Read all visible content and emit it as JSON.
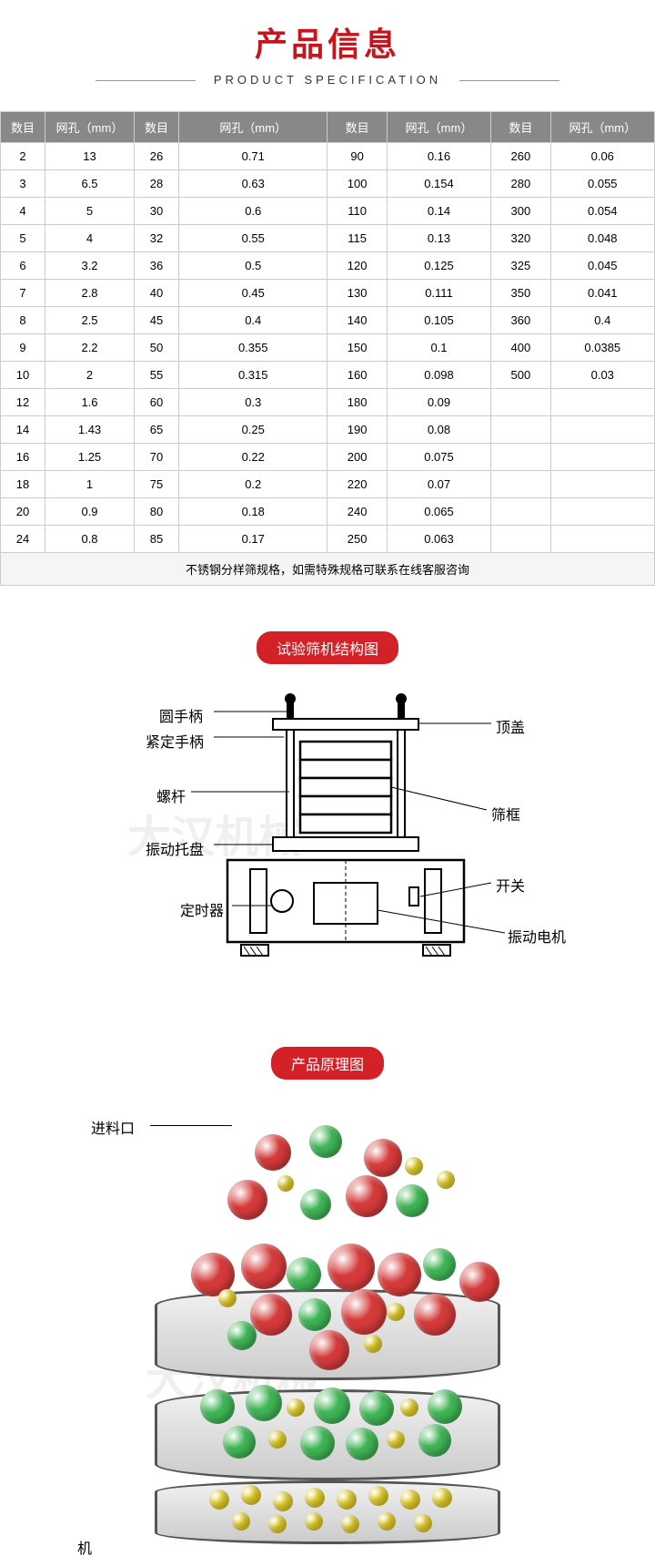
{
  "header": {
    "title_cn": "产品信息",
    "title_en": "PRODUCT SPECIFICATION"
  },
  "table": {
    "headers": [
      "数目",
      "网孔（mm）",
      "数目",
      "网孔（mm）",
      "数目",
      "网孔（mm）",
      "数目",
      "网孔（mm）"
    ],
    "rows": [
      [
        "2",
        "13",
        "26",
        "0.71",
        "90",
        "0.16",
        "260",
        "0.06"
      ],
      [
        "3",
        "6.5",
        "28",
        "0.63",
        "100",
        "0.154",
        "280",
        "0.055"
      ],
      [
        "4",
        "5",
        "30",
        "0.6",
        "110",
        "0.14",
        "300",
        "0.054"
      ],
      [
        "5",
        "4",
        "32",
        "0.55",
        "115",
        "0.13",
        "320",
        "0.048"
      ],
      [
        "6",
        "3.2",
        "36",
        "0.5",
        "120",
        "0.125",
        "325",
        "0.045"
      ],
      [
        "7",
        "2.8",
        "40",
        "0.45",
        "130",
        "0.111",
        "350",
        "0.041"
      ],
      [
        "8",
        "2.5",
        "45",
        "0.4",
        "140",
        "0.105",
        "360",
        "0.4"
      ],
      [
        "9",
        "2.2",
        "50",
        "0.355",
        "150",
        "0.1",
        "400",
        "0.0385"
      ],
      [
        "10",
        "2",
        "55",
        "0.315",
        "160",
        "0.098",
        "500",
        "0.03"
      ],
      [
        "12",
        "1.6",
        "60",
        "0.3",
        "180",
        "0.09",
        "",
        ""
      ],
      [
        "14",
        "1.43",
        "65",
        "0.25",
        "190",
        "0.08",
        "",
        ""
      ],
      [
        "16",
        "1.25",
        "70",
        "0.22",
        "200",
        "0.075",
        "",
        ""
      ],
      [
        "18",
        "1",
        "75",
        "0.2",
        "220",
        "0.07",
        "",
        ""
      ],
      [
        "20",
        "0.9",
        "80",
        "0.18",
        "240",
        "0.065",
        "",
        ""
      ],
      [
        "24",
        "0.8",
        "85",
        "0.17",
        "250",
        "0.063",
        "",
        ""
      ]
    ],
    "footnote": "不锈钢分样筛规格，如需特殊规格可联系在线客服咨询",
    "col_widths": [
      "6%",
      "12%",
      "6%",
      "20%",
      "8%",
      "14%",
      "8%",
      "14%"
    ],
    "header_bg": "#888888",
    "header_color": "#ffffff",
    "border_color": "#cccccc"
  },
  "section1": {
    "pill": "试验筛机结构图",
    "labels": {
      "round_handle": "圆手柄",
      "lock_handle": "紧定手柄",
      "screw": "螺杆",
      "vibration_tray": "振动托盘",
      "timer": "定时器",
      "top_cover": "顶盖",
      "sieve_frame": "筛框",
      "switch": "开关",
      "vibration_motor": "振动电机"
    }
  },
  "section2": {
    "pill": "产品原理图",
    "feed_label": "进料口",
    "machine_label": "机",
    "ball_colors": {
      "red": "#d43a3a",
      "green": "#3fb555",
      "yellow": "#e8d22a"
    },
    "sieve_color": "#555555"
  },
  "watermark": "大汉机械"
}
